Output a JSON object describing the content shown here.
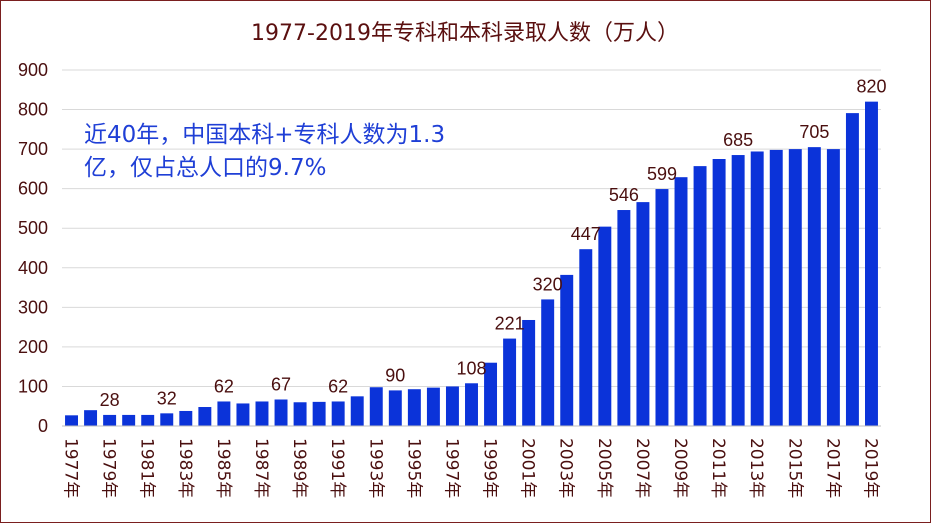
{
  "chart_data": {
    "type": "bar",
    "title": "1977-2019年专科和本科录取人数（万人）",
    "xlabel": "",
    "ylabel": "",
    "ylim": [
      0,
      900
    ],
    "yticks": [
      0,
      100,
      200,
      300,
      400,
      500,
      600,
      700,
      800,
      900
    ],
    "grid": true,
    "colors": {
      "bar": "#0b33d9",
      "title": "#5a0f0f",
      "annotation": "#1f3fd6"
    },
    "categories": [
      "1977年",
      "1978年",
      "1979年",
      "1980年",
      "1981年",
      "1982年",
      "1983年",
      "1984年",
      "1985年",
      "1986年",
      "1987年",
      "1988年",
      "1989年",
      "1990年",
      "1991年",
      "1992年",
      "1993年",
      "1994年",
      "1995年",
      "1996年",
      "1997年",
      "1998年",
      "1999年",
      "2000年",
      "2001年",
      "2002年",
      "2003年",
      "2004年",
      "2005年",
      "2006年",
      "2007年",
      "2008年",
      "2009年",
      "2010年",
      "2011年",
      "2012年",
      "2013年",
      "2014年",
      "2015年",
      "2016年",
      "2017年",
      "2018年",
      "2019年"
    ],
    "tick_labels": [
      "1977年",
      "1979年",
      "1981年",
      "1983年",
      "1985年",
      "1987年",
      "1989年",
      "1991年",
      "1993年",
      "1995年",
      "1997年",
      "1999年",
      "2001年",
      "2003年",
      "2005年",
      "2007年",
      "2009年",
      "2011年",
      "2013年",
      "2015年",
      "2017年",
      "2019年"
    ],
    "values": [
      27,
      40,
      28,
      28,
      28,
      32,
      38,
      48,
      62,
      57,
      62,
      67,
      60,
      61,
      62,
      75,
      98,
      90,
      93,
      97,
      100,
      108,
      160,
      221,
      268,
      320,
      382,
      447,
      504,
      546,
      566,
      599,
      629,
      657,
      675,
      685,
      694,
      698,
      700,
      705,
      700,
      791,
      820
    ],
    "data_labels": [
      {
        "index": 2,
        "text": "28"
      },
      {
        "index": 5,
        "text": "32"
      },
      {
        "index": 8,
        "text": "62"
      },
      {
        "index": 11,
        "text": "67"
      },
      {
        "index": 14,
        "text": "62"
      },
      {
        "index": 17,
        "text": "90"
      },
      {
        "index": 21,
        "text": "108"
      },
      {
        "index": 23,
        "text": "221"
      },
      {
        "index": 25,
        "text": "320"
      },
      {
        "index": 27,
        "text": "447"
      },
      {
        "index": 29,
        "text": "546"
      },
      {
        "index": 31,
        "text": "599"
      },
      {
        "index": 35,
        "text": "685"
      },
      {
        "index": 39,
        "text": "705"
      },
      {
        "index": 42,
        "text": "820"
      }
    ],
    "annotation": {
      "line1": "近40年，中国本科+专科人数为1.3",
      "line2": "亿，仅占总人口的9.7%"
    }
  }
}
